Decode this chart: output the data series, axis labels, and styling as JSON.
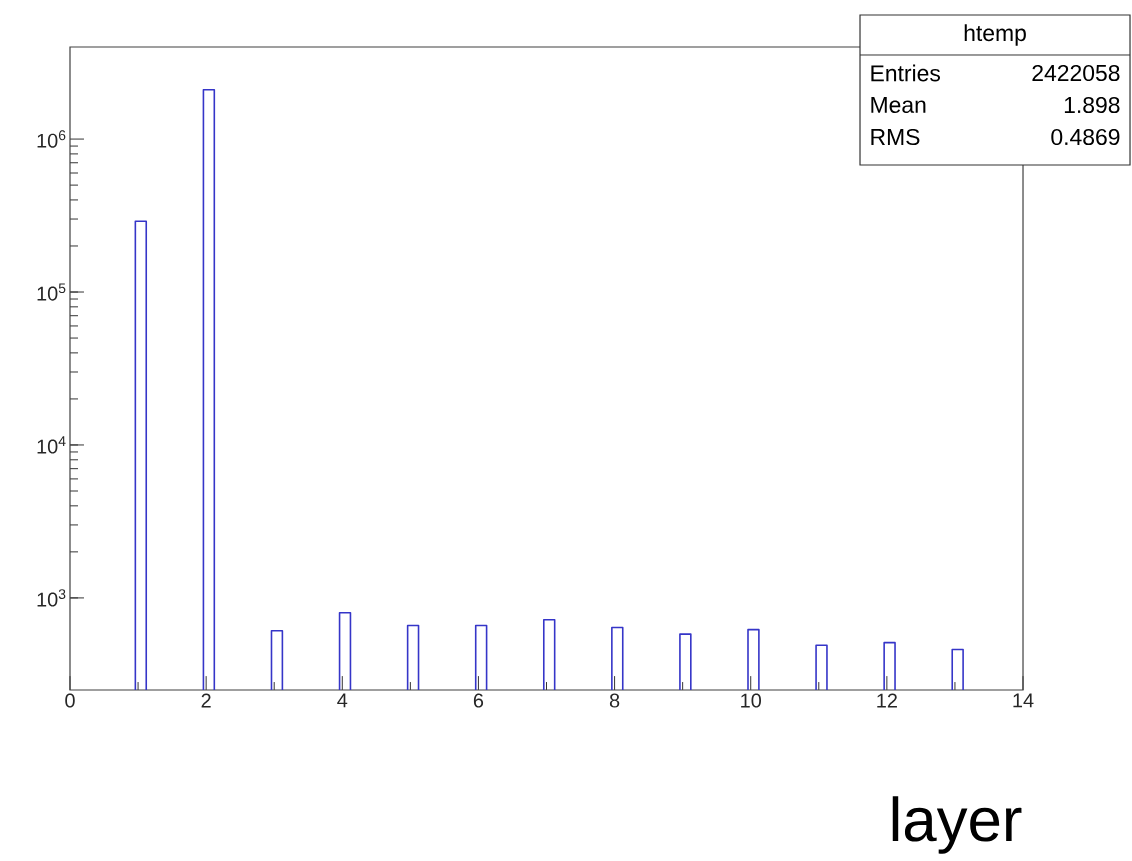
{
  "chart_data": {
    "type": "histogram",
    "xlabel": "layer",
    "bins": [
      0.96,
      1.12,
      1.96,
      2.12,
      2.96,
      3.12,
      3.96,
      4.12,
      4.96,
      5.12,
      5.96,
      6.12,
      6.96,
      7.12,
      7.96,
      8.12,
      8.96,
      9.12,
      9.96,
      10.12,
      10.96,
      11.12,
      11.96,
      12.12,
      12.96,
      13.12
    ],
    "values": [
      290000,
      null,
      2100000,
      null,
      610,
      null,
      800,
      null,
      660,
      null,
      660,
      null,
      720,
      null,
      640,
      null,
      580,
      null,
      620,
      null,
      490,
      null,
      510,
      null,
      460
    ],
    "color": "#3535c8",
    "log": "y",
    "xlim": [
      0,
      14
    ],
    "xticks": [
      0,
      2,
      4,
      6,
      8,
      10,
      12,
      14
    ],
    "ylim": [
      250,
      4000000
    ],
    "yticks": [
      {
        "value": 1000,
        "label": "10$^{3}$"
      },
      {
        "value": 10000,
        "label": "10$^{4}$"
      },
      {
        "value": 100000,
        "label": "10$^{5}$"
      },
      {
        "value": 1000000,
        "label": "10$^{6}$"
      }
    ],
    "annotations": [
      "htemp",
      "Entries",
      "2422058",
      "Mean",
      "1.898",
      "RMS",
      "0.4869"
    ]
  }
}
